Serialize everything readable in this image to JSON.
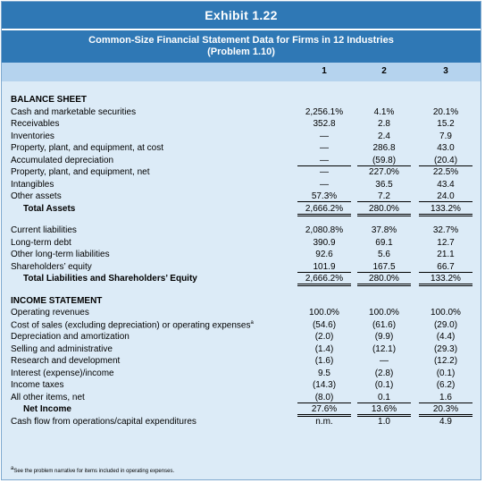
{
  "exhibit": {
    "title": "Exhibit 1.22",
    "subtitle_line1": "Common-Size Financial Statement Data for Firms in 12 Industries",
    "subtitle_line2": "(Problem 1.10)",
    "columns": [
      "1",
      "2",
      "3"
    ]
  },
  "sections": {
    "balance_sheet": "BALANCE SHEET",
    "income_statement": "INCOME STATEMENT"
  },
  "rows": [
    {
      "label": "Cash and marketable securities",
      "v": [
        "2,256.1%",
        "4.1%",
        "20.1%"
      ]
    },
    {
      "label": "Receivables",
      "v": [
        "352.8",
        "2.8",
        "15.2"
      ]
    },
    {
      "label": "Inventories",
      "v": [
        "—",
        "2.4",
        "7.9"
      ]
    },
    {
      "label": "Property, plant, and equipment, at cost",
      "v": [
        "—",
        "286.8",
        "43.0"
      ]
    },
    {
      "label": "Accumulated depreciation",
      "v": [
        "—",
        "(59.8)",
        "(20.4)"
      ]
    },
    {
      "label": "Property, plant, and equipment, net",
      "v": [
        "—",
        "227.0%",
        "22.5%"
      ]
    },
    {
      "label": "Intangibles",
      "v": [
        "—",
        "36.5",
        "43.4"
      ]
    },
    {
      "label": "Other assets",
      "v": [
        "57.3%",
        "7.2",
        "24.0"
      ]
    },
    {
      "label": "Total Assets",
      "v": [
        "2,666.2%",
        "280.0%",
        "133.2%"
      ]
    },
    {
      "label": "Current liabilities",
      "v": [
        "2,080.8%",
        "37.8%",
        "32.7%"
      ]
    },
    {
      "label": "Long-term debt",
      "v": [
        "390.9",
        "69.1",
        "12.7"
      ]
    },
    {
      "label": "Other long-term liabilities",
      "v": [
        "92.6",
        "5.6",
        "21.1"
      ]
    },
    {
      "label": "Shareholders’ equity",
      "v": [
        "101.9",
        "167.5",
        "66.7"
      ]
    },
    {
      "label": "Total Liabilities and Shareholders’ Equity",
      "v": [
        "2,666.2%",
        "280.0%",
        "133.2%"
      ]
    },
    {
      "label": "Operating revenues",
      "v": [
        "100.0%",
        "100.0%",
        "100.0%"
      ]
    },
    {
      "label": "Cost of sales (excluding depreciation) or operating expenses",
      "sup": "a",
      "v": [
        "(54.6)",
        "(61.6)",
        "(29.0)"
      ]
    },
    {
      "label": "Depreciation and amortization",
      "v": [
        "(2.0)",
        "(9.9)",
        "(4.4)"
      ]
    },
    {
      "label": "Selling and administrative",
      "v": [
        "(1.4)",
        "(12.1)",
        "(29.3)"
      ]
    },
    {
      "label": "Research and development",
      "v": [
        "(1.6)",
        "—",
        "(12.2)"
      ]
    },
    {
      "label": "Interest (expense)/income",
      "v": [
        "9.5",
        "(2.8)",
        "(0.1)"
      ]
    },
    {
      "label": "Income taxes",
      "v": [
        "(14.3)",
        "(0.1)",
        "(6.2)"
      ]
    },
    {
      "label": "All other items, net",
      "v": [
        "(8.0)",
        "0.1",
        "1.6"
      ]
    },
    {
      "label": "Net Income",
      "v": [
        "27.6%",
        "13.6%",
        "20.3%"
      ]
    },
    {
      "label": "Cash flow from operations/capital expenditures",
      "v": [
        "n.m.",
        "1.0",
        "4.9"
      ]
    }
  ],
  "footnote": {
    "sup": "a",
    "text": "See the problem narrative for items included in operating expenses."
  }
}
